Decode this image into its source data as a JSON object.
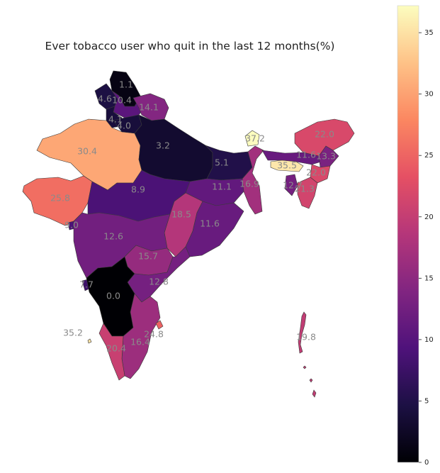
{
  "title": "Ever tobacco user who quit in the last 12 months(%)",
  "chart_data": {
    "type": "choropleth",
    "title": "Ever tobacco user who quit in the last 12 months(%)",
    "colormap": "magma",
    "color_range": [
      0,
      37.2
    ],
    "colorbar_ticks": [
      0,
      5,
      10,
      15,
      20,
      25,
      30,
      35
    ],
    "regions": [
      {
        "id": "jk-north",
        "value": 1.1
      },
      {
        "id": "jk-west",
        "value": 4.6
      },
      {
        "id": "jk-east",
        "value": 10.4
      },
      {
        "id": "himachal",
        "value": 14.1
      },
      {
        "id": "punjab",
        "value": 4.1
      },
      {
        "id": "haryana",
        "value": 4.0
      },
      {
        "id": "rajasthan",
        "value": 30.4
      },
      {
        "id": "uttar-pradesh",
        "value": 3.2
      },
      {
        "id": "gujarat",
        "value": 25.8
      },
      {
        "id": "madhya-pradesh",
        "value": 8.9
      },
      {
        "id": "bihar",
        "value": 5.1
      },
      {
        "id": "jharkhand",
        "value": 11.1
      },
      {
        "id": "west-bengal",
        "value": 16.9
      },
      {
        "id": "sikkim",
        "value": 37.2
      },
      {
        "id": "arunachal",
        "value": 22.0
      },
      {
        "id": "assam",
        "value": 11.6
      },
      {
        "id": "nagaland",
        "value": 13.3
      },
      {
        "id": "meghalaya",
        "value": 35.5
      },
      {
        "id": "manipur",
        "value": 22.0
      },
      {
        "id": "tripura",
        "value": 12.7
      },
      {
        "id": "mizoram",
        "value": 21.3
      },
      {
        "id": "chhattisgarh",
        "value": 18.5
      },
      {
        "id": "odisha",
        "value": 11.6
      },
      {
        "id": "dadra",
        "value": 9.0
      },
      {
        "id": "maharashtra",
        "value": 12.6
      },
      {
        "id": "telangana",
        "value": 15.7
      },
      {
        "id": "andhra",
        "value": 12.8
      },
      {
        "id": "goa",
        "value": 7.7
      },
      {
        "id": "karnataka",
        "value": 0.0
      },
      {
        "id": "tamil-nadu",
        "value": 16.4
      },
      {
        "id": "puducherry",
        "value": 24.8
      },
      {
        "id": "kerala",
        "value": 20.4
      },
      {
        "id": "lakshadweep",
        "value": 35.2
      },
      {
        "id": "andaman",
        "value": 19.8
      }
    ]
  }
}
